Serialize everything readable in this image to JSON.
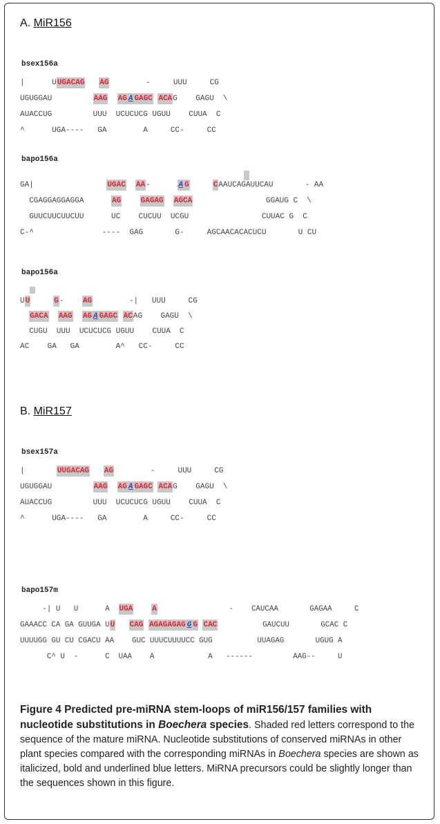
{
  "sections": [
    {
      "prefix": "A.",
      "title": "MiR156"
    },
    {
      "prefix": "B.",
      "title": "MiR157"
    }
  ],
  "structures": [
    {
      "label": "bsex156a",
      "lines": [
        [
          {
            "t": "|      U"
          },
          {
            "t": "UGACAG",
            "c": "r"
          },
          {
            "t": "   "
          },
          {
            "t": "AG",
            "c": "r"
          },
          {
            "t": "        -     UUU     CG"
          }
        ],
        [
          {
            "t": "UGUGGAU         "
          },
          {
            "t": "AAG",
            "c": "r"
          },
          {
            "t": "  "
          },
          {
            "t": "AG",
            "c": "r"
          },
          {
            "t": "A",
            "c": "rb"
          },
          {
            "t": "GAGC",
            "c": "r"
          },
          {
            "t": " "
          },
          {
            "t": "ACA",
            "c": "r"
          },
          {
            "t": "G    GAGU  \\"
          }
        ],
        [
          {
            "t": "AUACCUG         UUU  UCUCUCG UGUU    CUUA  C"
          }
        ],
        [
          {
            "t": "^      UGA----   GA        A     CC-     CC"
          }
        ]
      ]
    },
    {
      "label": "bapo156a",
      "lines": [
        [
          {
            "t": "GA|                "
          },
          {
            "t": "UGAC",
            "c": "r"
          },
          {
            "t": "  "
          },
          {
            "t": "AA",
            "c": "r"
          },
          {
            "t": "-      "
          },
          {
            "t": "A",
            "c": "rb"
          },
          {
            "t": "G",
            "c": "r"
          },
          {
            "t": "     "
          },
          {
            "t": "C",
            "c": "r"
          },
          {
            "t": "AAUCAGAUUCAU       - AA"
          }
        ],
        [
          {
            "t": "  CGAGGAGGAGGA      "
          },
          {
            "t": "AG",
            "c": "r"
          },
          {
            "t": "    "
          },
          {
            "t": "GAGAG",
            "c": "r"
          },
          {
            "t": "  "
          },
          {
            "t": "AGCA",
            "c": "r"
          },
          {
            "t": "                GGAUG C  \\"
          }
        ],
        [
          {
            "t": "  GUUCUUCUUCUU      UC    CUCUU  UCGU                CUUAC G  C"
          }
        ],
        [
          {
            "t": "C-^               ----  GAG       G-     AGCAACACACUCU       U CU"
          }
        ]
      ]
    },
    {
      "label": "bapo156a",
      "lines": [
        [
          {
            "t": "U"
          },
          {
            "t": "U",
            "c": "r"
          },
          {
            "t": "     "
          },
          {
            "t": "G",
            "c": "r"
          },
          {
            "t": "-    "
          },
          {
            "t": "AG",
            "c": "r"
          },
          {
            "t": "        -|   UUU     CG"
          }
        ],
        [
          {
            "t": "  "
          },
          {
            "t": "GACA",
            "c": "r"
          },
          {
            "t": "  "
          },
          {
            "t": "AAG",
            "c": "r"
          },
          {
            "t": "  "
          },
          {
            "t": "AG",
            "c": "r"
          },
          {
            "t": "A",
            "c": "rb"
          },
          {
            "t": "GAGC",
            "c": "r"
          },
          {
            "t": " "
          },
          {
            "t": "AC",
            "c": "r"
          },
          {
            "t": "AG    GAGU  \\"
          }
        ],
        [
          {
            "t": "  CUGU  UUU  UCUCUCG UGUU    CUUA  C"
          }
        ],
        [
          {
            "t": "AC    GA   GA        A^   CC-     CC"
          }
        ]
      ]
    },
    {
      "label": "bsex157a",
      "lines": [
        [
          {
            "t": "|       "
          },
          {
            "t": "UUGACAG",
            "c": "r"
          },
          {
            "t": "   "
          },
          {
            "t": "AG",
            "c": "r"
          },
          {
            "t": "        -     UUU     CG"
          }
        ],
        [
          {
            "t": "UGUGGAU         "
          },
          {
            "t": "AAG",
            "c": "r"
          },
          {
            "t": "  "
          },
          {
            "t": "AG",
            "c": "r"
          },
          {
            "t": "A",
            "c": "rb"
          },
          {
            "t": "GAGC",
            "c": "r"
          },
          {
            "t": " "
          },
          {
            "t": "ACA",
            "c": "r"
          },
          {
            "t": "G    GAGU  \\"
          }
        ],
        [
          {
            "t": "AUACCUG         UUU  UCUCUCG UGUU    CUUA  C"
          }
        ],
        [
          {
            "t": "^      UGA----   GA        A     CC-     CC"
          }
        ]
      ]
    },
    {
      "label": "bapo157m",
      "lines": [
        [
          {
            "t": "     -| U   U      A  "
          },
          {
            "t": "UGA",
            "c": "r"
          },
          {
            "t": "    "
          },
          {
            "t": "A",
            "c": "r"
          },
          {
            "t": "                -    CAUCAA       GAGAA     C"
          }
        ],
        [
          {
            "t": "GAAACC CA GA GUUGA U"
          },
          {
            "t": "U",
            "c": "r"
          },
          {
            "t": "   "
          },
          {
            "t": "CAG",
            "c": "r"
          },
          {
            "t": " "
          },
          {
            "t": "AGAGAGAG",
            "c": "r"
          },
          {
            "t": "G",
            "c": "rb"
          },
          {
            "t": "G",
            "c": "r"
          },
          {
            "t": " "
          },
          {
            "t": "CAC",
            "c": "r"
          },
          {
            "t": "          GAUCUU       GCAC C"
          }
        ],
        [
          {
            "t": "UUUUGG GU CU CGACU AA    GUC UUUCUUUUCC GUG          UUAGAG       UGUG A"
          }
        ],
        [
          {
            "t": "      C^ U  -      C  UAA    A            A   ------         AAG--     U"
          }
        ]
      ]
    }
  ],
  "caption": {
    "title_part1": "Figure 4 Predicted pre-miRNA stem-loops of miR156/157 families with nucleotide substitutions in ",
    "title_italic": "Boechera",
    "title_part2": " species",
    "title_end": ".",
    "body_part1": " Shaded red letters correspond to the sequence of the mature miRNA. Nucleotide substitutions of conserved miRNAs in other plant species compared with the corresponding miRNAs in ",
    "body_italic": "Boechera",
    "body_part2": " species are shown as italicized, bold and underlined blue letters. MiRNA precursors could be slightly longer than the sequences shown in this figure."
  }
}
